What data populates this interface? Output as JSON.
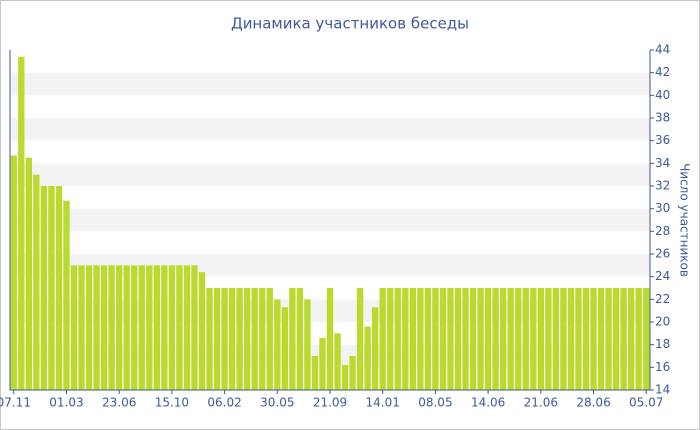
{
  "chart_data": {
    "type": "bar",
    "title": "Динамика участников беседы",
    "y_label": "Число участников",
    "color": "#bada2e",
    "grid": true,
    "categories": [
      "07.11",
      null,
      null,
      null,
      null,
      null,
      null,
      "01.03",
      null,
      null,
      null,
      null,
      null,
      null,
      "23.06",
      null,
      null,
      null,
      null,
      null,
      null,
      "15.10",
      null,
      null,
      null,
      null,
      null,
      null,
      "06.02",
      null,
      null,
      null,
      null,
      null,
      null,
      "30.05",
      null,
      null,
      null,
      null,
      null,
      null,
      "21.09",
      null,
      null,
      null,
      null,
      null,
      null,
      "14.01",
      null,
      null,
      null,
      null,
      null,
      null,
      "08.05",
      null,
      null,
      null,
      null,
      null,
      null,
      "14.06",
      null,
      null,
      null,
      null,
      null,
      null,
      "21.06",
      null,
      null,
      null,
      null,
      null,
      null,
      "28.06",
      null,
      null,
      null,
      null,
      null,
      null,
      "05.07"
    ],
    "values": [
      34.7,
      43.4,
      34.5,
      33,
      32,
      32,
      32,
      30.7,
      25,
      25,
      25,
      25,
      25,
      25,
      25,
      25,
      25,
      25,
      25,
      25,
      25,
      25,
      25,
      25,
      25,
      24.4,
      23,
      23,
      23,
      23,
      23,
      23,
      23,
      23,
      23,
      22,
      21.3,
      23,
      23,
      22,
      17,
      18.6,
      23,
      19,
      16.2,
      17,
      23,
      19.6,
      21.3,
      23,
      23,
      23,
      23,
      23,
      23,
      23,
      23,
      23,
      23,
      23,
      23,
      23,
      23,
      23,
      23,
      23,
      23,
      23,
      23,
      23,
      23,
      23,
      23,
      23,
      23,
      23,
      23,
      23,
      23,
      23,
      23,
      23,
      23,
      23,
      23
    ],
    "ylim": [
      14,
      44
    ],
    "yticks": [
      14,
      16,
      18,
      20,
      22,
      24,
      26,
      28,
      30,
      32,
      34,
      36,
      38,
      40,
      42,
      44
    ]
  }
}
